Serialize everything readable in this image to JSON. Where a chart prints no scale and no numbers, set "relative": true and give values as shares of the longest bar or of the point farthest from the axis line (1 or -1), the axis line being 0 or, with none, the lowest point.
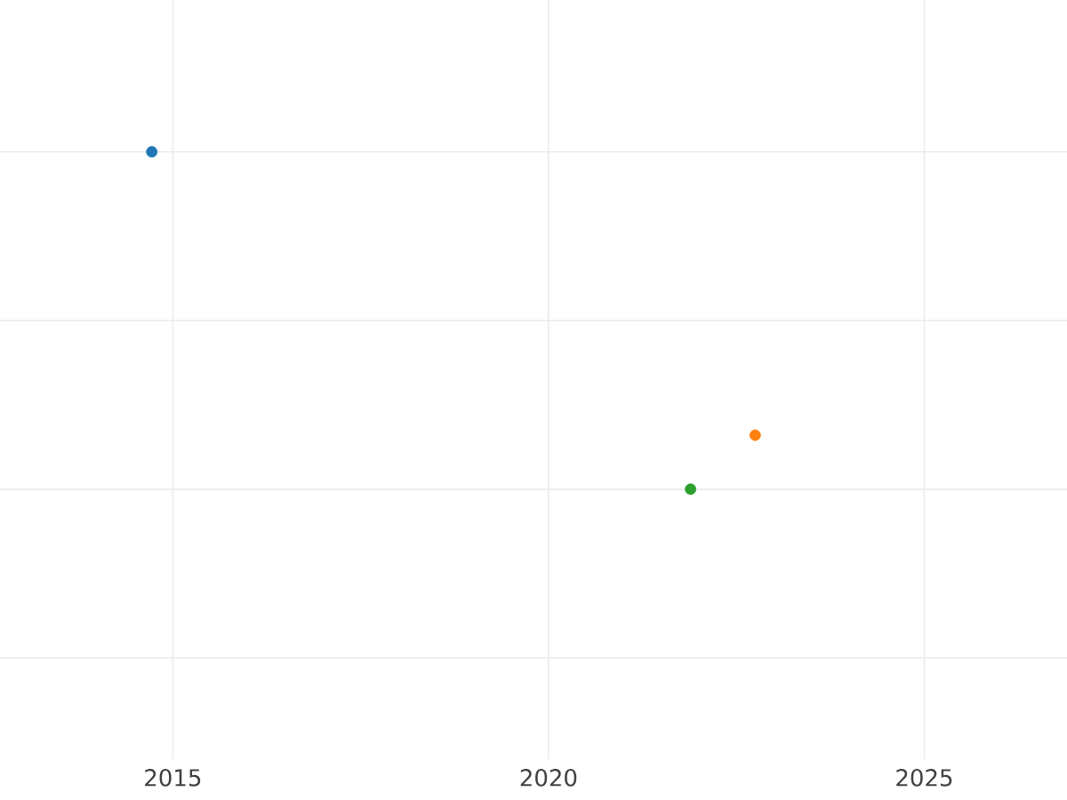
{
  "chart_data": {
    "type": "scatter",
    "relative": true,
    "x": [
      2014.72,
      2022.75,
      2021.89
    ],
    "series": [
      {
        "values": [
          1,
          0.16,
          0
        ],
        "colors": [
          "#1f77b4",
          "#ff7f0e",
          "#2ca02c"
        ]
      }
    ],
    "xlim": [
      2012.7,
      2026.9
    ],
    "xticks": [
      2015,
      2020,
      2025
    ],
    "grid": true,
    "marker": "circle"
  }
}
